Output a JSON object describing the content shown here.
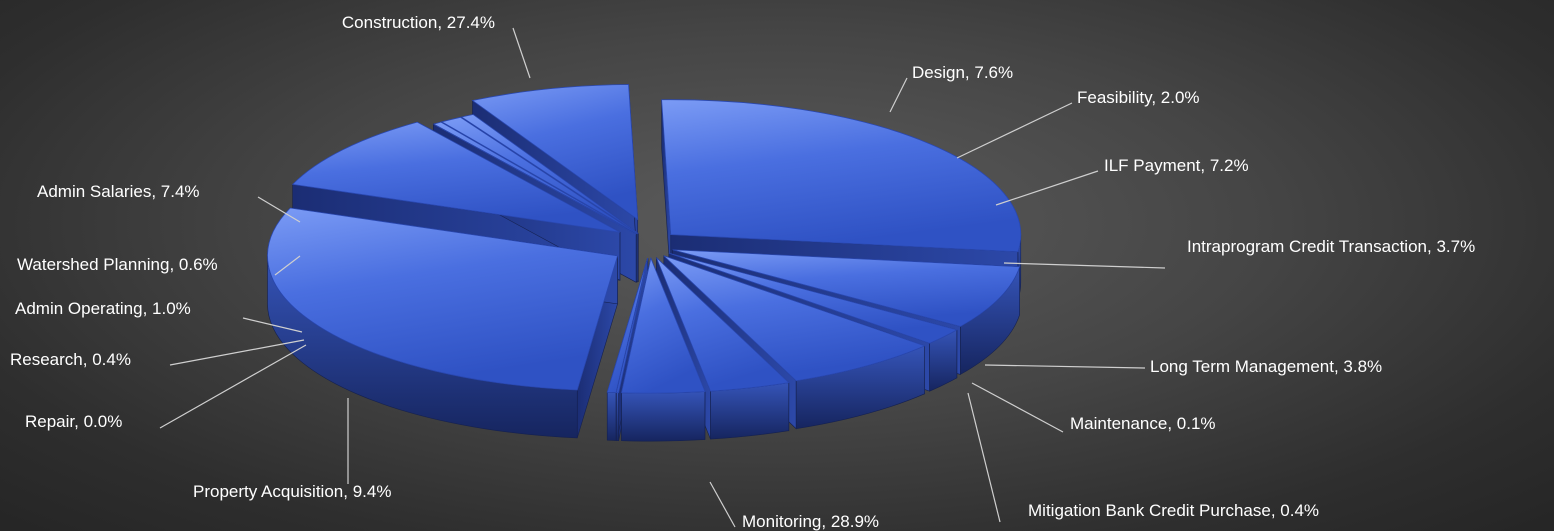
{
  "chart_data": {
    "type": "pie",
    "style": "3d-exploded",
    "slices": [
      {
        "name": "Construction",
        "value": 27.4,
        "label": "Construction, 27.4%"
      },
      {
        "name": "Design",
        "value": 7.6,
        "label": "Design, 7.6%"
      },
      {
        "name": "Feasibility",
        "value": 2.0,
        "label": "Feasibility, 2.0%"
      },
      {
        "name": "ILF Payment",
        "value": 7.2,
        "label": "ILF Payment, 7.2%"
      },
      {
        "name": "Intraprogram Credit Transaction",
        "value": 3.7,
        "label": "Intraprogram Credit Transaction, 3.7%"
      },
      {
        "name": "Long Term Management",
        "value": 3.8,
        "label": "Long Term Management, 3.8%"
      },
      {
        "name": "Maintenance",
        "value": 0.1,
        "label": "Maintenance, 0.1%"
      },
      {
        "name": "Mitigation Bank Credit Purchase",
        "value": 0.4,
        "label": "Mitigation Bank Credit Purchase, 0.4%"
      },
      {
        "name": "Monitoring",
        "value": 28.9,
        "label": "Monitoring, 28.9%"
      },
      {
        "name": "Property Acquisition",
        "value": 9.4,
        "label": "Property Acquisition, 9.4%"
      },
      {
        "name": "Repair",
        "value": 0.0,
        "label": "Repair, 0.0%"
      },
      {
        "name": "Research",
        "value": 0.4,
        "label": "Research, 0.4%"
      },
      {
        "name": "Admin Operating",
        "value": 1.0,
        "label": "Admin Operating, 1.0%"
      },
      {
        "name": "Watershed Planning",
        "value": 0.6,
        "label": "Watershed Planning, 0.6%"
      },
      {
        "name": "Admin Salaries",
        "value": 7.4,
        "label": "Admin Salaries, 7.4%"
      }
    ],
    "colors": {
      "slice_top": "#3e63d6",
      "slice_top_light": "#6d8ff0",
      "slice_side": "#2a46a8",
      "slice_side_dark": "#1a2c74",
      "label": "#ffffff",
      "leader": "#cfcfcf"
    }
  }
}
